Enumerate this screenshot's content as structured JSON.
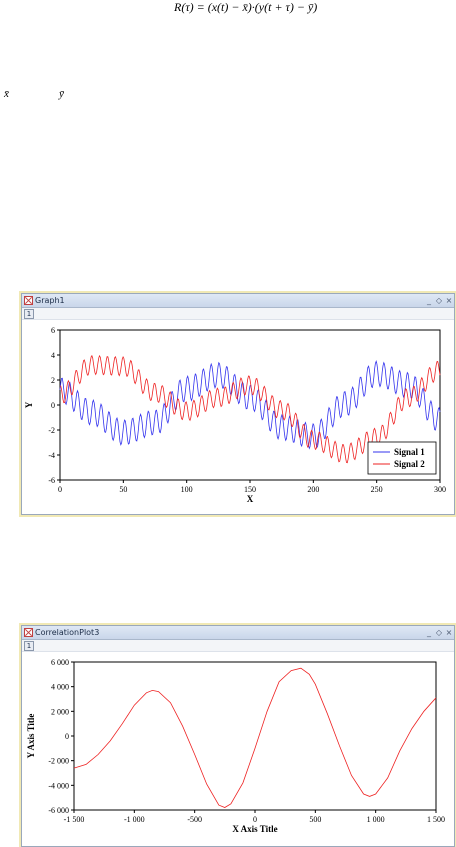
{
  "formula": {
    "lhs": "R(τ) =",
    "rhs": "(x(t) − x̄)·(y(t + τ) − ȳ)",
    "xbar": "x̄",
    "ybar": "ȳ"
  },
  "windows": [
    {
      "title": "Graph1",
      "tab_label": "1",
      "buttons": [
        "_",
        "◇",
        "×"
      ],
      "axes": {
        "xlabel": "X",
        "ylabel": "Y"
      },
      "legend": [
        "Signal 1",
        "Signal 2"
      ]
    },
    {
      "title": "CorrelationPlot3",
      "tab_label": "1",
      "buttons": [
        "_",
        "◇",
        "×"
      ],
      "axes": {
        "xlabel": "X Axis Title",
        "ylabel": "Y Axis Title"
      }
    }
  ],
  "chart_data": [
    {
      "type": "line",
      "xlabel": "X",
      "ylabel": "Y",
      "xlim": [
        0,
        300
      ],
      "ylim": [
        -6,
        6
      ],
      "x_ticks": [
        "0",
        "50",
        "100",
        "150",
        "200",
        "250",
        "300"
      ],
      "y_ticks": [
        "6",
        "4",
        "2",
        "0",
        "-2",
        "-4",
        "-6"
      ],
      "legend_position": "bottom-right",
      "series": [
        {
          "name": "Signal 1",
          "color": "#3333ee",
          "description": "sum of slow sine (amplitude 2, period ~100) and fast oscillation (amplitude ~1, period ~6)",
          "x": [
            0,
            25,
            50,
            75,
            100,
            125,
            150,
            175,
            200,
            225,
            250,
            275,
            300
          ],
          "y": [
            1.2,
            -0.6,
            -2.2,
            -1.4,
            1.3,
            2.4,
            0.6,
            -1.8,
            -2.5,
            0.1,
            2.5,
            1.6,
            -1.2
          ]
        },
        {
          "name": "Signal 2",
          "color": "#ee2222",
          "description": "slow sine (amplitude ~3.2, period ~180) plus fast oscillation (amplitude ~0.8)",
          "x": [
            0,
            25,
            50,
            75,
            100,
            125,
            150,
            175,
            200,
            225,
            250,
            275,
            300
          ],
          "y": [
            0.8,
            3.2,
            3.1,
            1.0,
            -0.5,
            0.6,
            1.6,
            -0.4,
            -2.8,
            -3.9,
            -2.6,
            0.6,
            2.8
          ]
        }
      ]
    },
    {
      "type": "line",
      "xlabel": "X Axis Title",
      "ylabel": "Y Axis Title",
      "xlim": [
        -1500,
        1500
      ],
      "ylim": [
        -6000,
        6000
      ],
      "x_ticks": [
        "-1 500",
        "-1 000",
        "-500",
        "0",
        "500",
        "1 000",
        "1 500"
      ],
      "y_ticks": [
        "6 000",
        "4 000",
        "2 000",
        "0",
        "-2 000",
        "-4 000",
        "-6 000"
      ],
      "series": [
        {
          "color": "#ee2222",
          "x": [
            -1500,
            -1400,
            -1300,
            -1200,
            -1100,
            -1000,
            -900,
            -850,
            -800,
            -700,
            -600,
            -500,
            -400,
            -300,
            -250,
            -200,
            -100,
            0,
            100,
            200,
            300,
            380,
            450,
            500,
            600,
            700,
            800,
            900,
            950,
            1000,
            1100,
            1200,
            1300,
            1400,
            1500
          ],
          "y": [
            -2600,
            -2300,
            -1500,
            -400,
            1000,
            2500,
            3500,
            3700,
            3600,
            2700,
            800,
            -1500,
            -3900,
            -5600,
            -5800,
            -5500,
            -3800,
            -1000,
            2000,
            4400,
            5300,
            5500,
            5000,
            4200,
            1800,
            -800,
            -3200,
            -4700,
            -4900,
            -4700,
            -3400,
            -1200,
            600,
            2000,
            3100
          ]
        }
      ]
    }
  ]
}
